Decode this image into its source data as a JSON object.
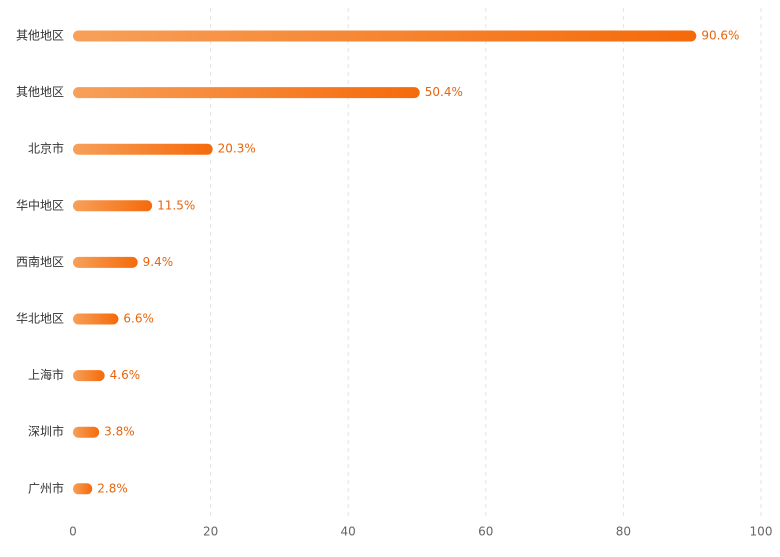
{
  "chart_data": {
    "type": "bar",
    "orientation": "horizontal",
    "categories": [
      "其他地区",
      "其他地区",
      "北京市",
      "华中地区",
      "西南地区",
      "华北地区",
      "上海市",
      "深圳市",
      "广州市"
    ],
    "values": [
      90.6,
      50.4,
      20.3,
      11.5,
      9.4,
      6.6,
      4.6,
      3.8,
      2.8
    ],
    "value_labels": [
      "90.6%",
      "50.4%",
      "20.3%",
      "11.5%",
      "9.4%",
      "6.6%",
      "4.6%",
      "3.8%",
      "2.8%"
    ],
    "xlim": [
      0,
      100
    ],
    "x_ticks": [
      0,
      20,
      40,
      60,
      80,
      100
    ],
    "title": "",
    "xlabel": "",
    "ylabel": "",
    "grid": "vertical dashed",
    "colors": {
      "bar_start": "#f7a05a",
      "bar_end": "#f56a0a",
      "value_label": "#e8650f",
      "category_label": "#333333",
      "tick_label": "#666666",
      "grid": "#e3e3e3"
    }
  }
}
